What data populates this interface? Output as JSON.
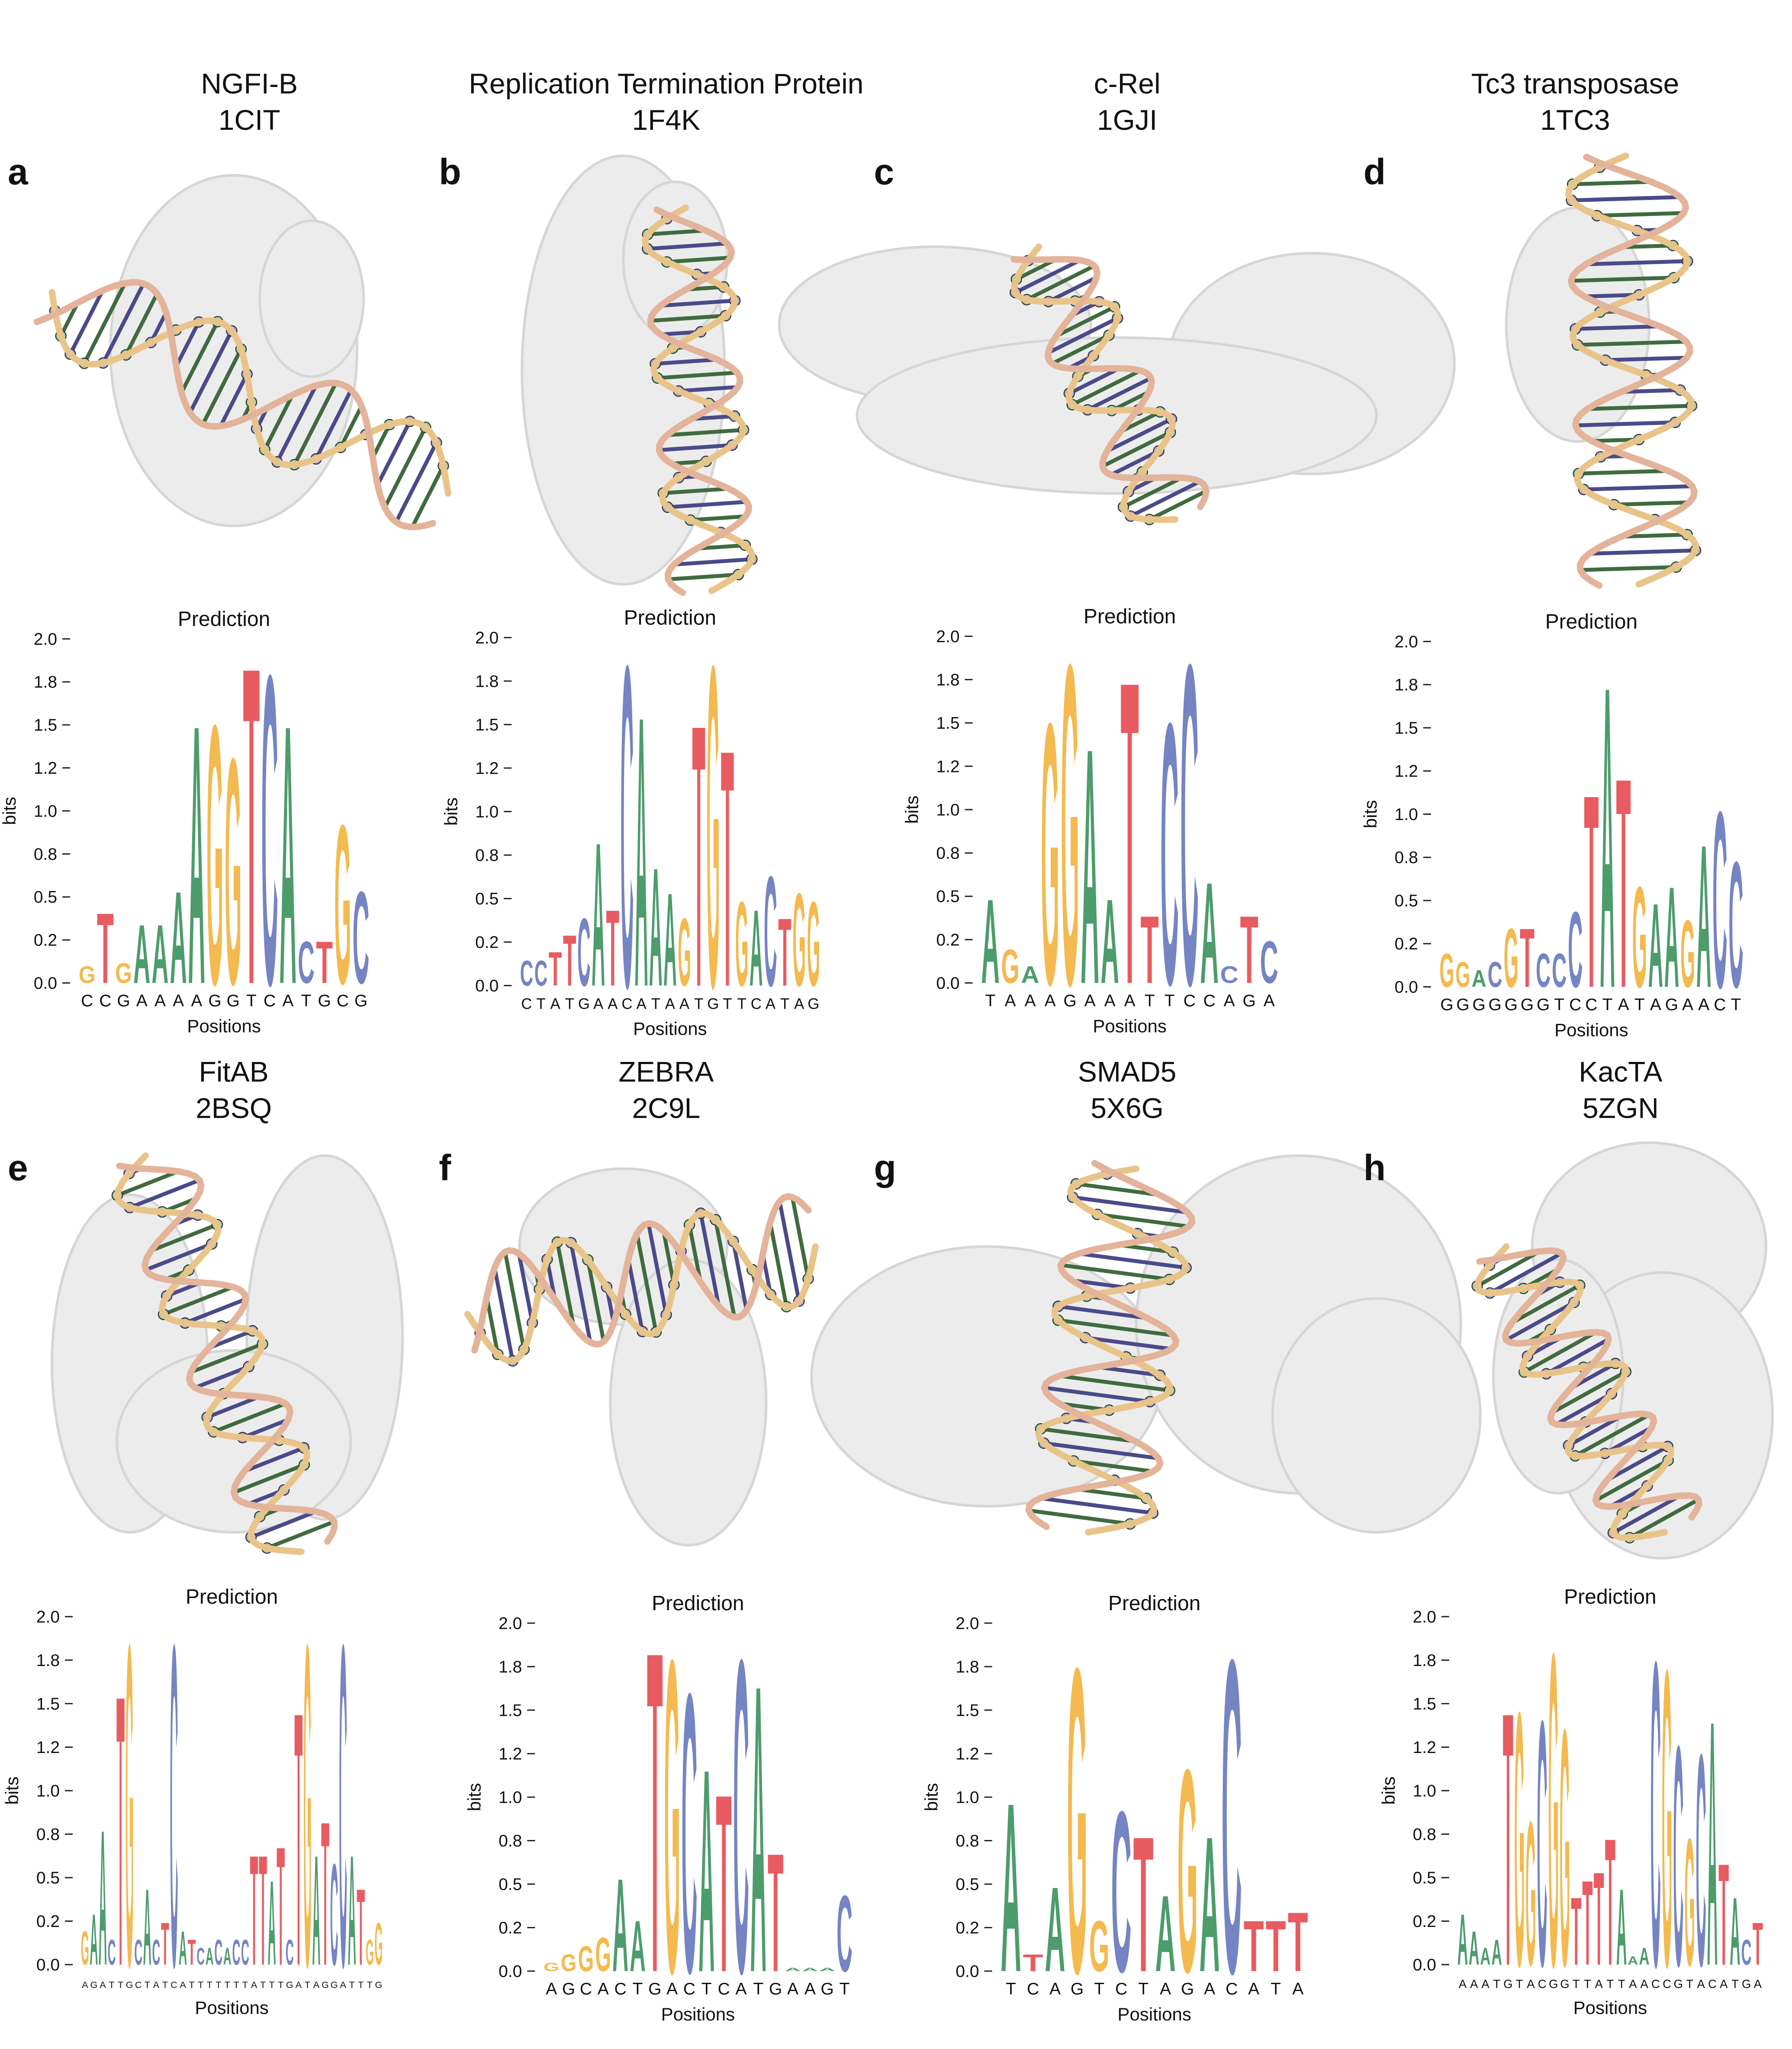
{
  "panels": [
    {
      "label": "a",
      "name": "NGFI-B",
      "pdb": "1CIT"
    },
    {
      "label": "b",
      "name": "Replication Termination Protein",
      "pdb": "1F4K"
    },
    {
      "label": "c",
      "name": "c-Rel",
      "pdb": "1GJI"
    },
    {
      "label": "d",
      "name": "Tc3 transposase",
      "pdb": "1TC3"
    },
    {
      "label": "e",
      "name": "FitAB",
      "pdb": "2BSQ"
    },
    {
      "label": "f",
      "name": "ZEBRA",
      "pdb": "2C9L"
    },
    {
      "label": "g",
      "name": "SMAD5",
      "pdb": "5X6G"
    },
    {
      "label": "h",
      "name": "KacTA",
      "pdb": "5ZGN"
    }
  ],
  "chart_data": [
    {
      "type": "logo",
      "title": "Prediction",
      "xlabel": "Positions",
      "ylabel": "bits",
      "colors": {
        "A": "#4d9c6c",
        "C": "#7584c2",
        "G": "#f4b94f",
        "T": "#e85b60"
      },
      "ylim": [
        0,
        2
      ],
      "yticks": [
        {
          "value": 0,
          "label": "0.0"
        },
        {
          "value": 0.25,
          "label": "0.2"
        },
        0.5,
        {
          "value": 0.75,
          "label": "0.8"
        },
        {
          "value": 1,
          "label": "1.0"
        },
        {
          "value": 1.25,
          "label": "1.2"
        },
        1.5,
        {
          "value": 1.75,
          "label": "1.8"
        },
        {
          "value": 2,
          "label": "2.0"
        }
      ],
      "categories": [
        "C",
        "C",
        "G",
        "A",
        "A",
        "A",
        "A",
        "G",
        "G",
        "T",
        "C",
        "A",
        "T",
        "G",
        "C",
        "G"
      ],
      "letters": [
        "G",
        "T",
        "G",
        "A",
        "A",
        "A",
        "A",
        "G",
        "G",
        "T",
        "C",
        "A",
        "C",
        "T",
        "G",
        "C"
      ],
      "values": [
        0.1,
        0.42,
        0.12,
        0.35,
        0.35,
        0.55,
        1.55,
        1.55,
        1.35,
        1.9,
        1.85,
        1.55,
        0.25,
        0.25,
        0.95,
        0.55
      ]
    },
    {
      "type": "logo",
      "title": "Prediction",
      "xlabel": "Positions",
      "ylabel": "bits",
      "colors": {
        "A": "#4d9c6c",
        "C": "#7584c2",
        "G": "#f4b94f",
        "T": "#e85b60"
      },
      "ylim": [
        0,
        2
      ],
      "yticks": [
        {
          "value": 0,
          "label": "0.0"
        },
        {
          "value": 0.25,
          "label": "0.2"
        },
        0.5,
        {
          "value": 0.75,
          "label": "0.8"
        },
        {
          "value": 1,
          "label": "1.0"
        },
        {
          "value": 1.25,
          "label": "1.2"
        },
        1.5,
        {
          "value": 1.75,
          "label": "1.8"
        },
        {
          "value": 2,
          "label": "2.0"
        }
      ],
      "categories": [
        "C",
        "T",
        "A",
        "T",
        "G",
        "A",
        "A",
        "C",
        "A",
        "T",
        "A",
        "A",
        "T",
        "G",
        "T",
        "T",
        "C",
        "A",
        "T",
        "A",
        "G"
      ],
      "letters": [
        "C",
        "C",
        "T",
        "T",
        "C",
        "A",
        "T",
        "C",
        "A",
        "A",
        "A",
        "G",
        "T",
        "G",
        "T",
        "G",
        "A",
        "C",
        "T",
        "G",
        "G"
      ],
      "values": [
        0.15,
        0.15,
        0.2,
        0.3,
        0.4,
        0.85,
        0.45,
        1.9,
        1.6,
        0.7,
        0.55,
        0.4,
        1.55,
        1.9,
        1.4,
        0.5,
        0.45,
        0.65,
        0.4,
        0.55,
        0.5
      ]
    },
    {
      "type": "logo",
      "title": "Prediction",
      "xlabel": "Positions",
      "ylabel": "bits",
      "colors": {
        "A": "#4d9c6c",
        "C": "#7584c2",
        "G": "#f4b94f",
        "T": "#e85b60"
      },
      "ylim": [
        0,
        2
      ],
      "yticks": [
        {
          "value": 0,
          "label": "0.0"
        },
        {
          "value": 0.25,
          "label": "0.2"
        },
        0.5,
        {
          "value": 0.75,
          "label": "0.8"
        },
        {
          "value": 1,
          "label": "1.0"
        },
        {
          "value": 1.25,
          "label": "1.2"
        },
        1.5,
        {
          "value": 1.75,
          "label": "1.8"
        },
        {
          "value": 2,
          "label": "2.0"
        }
      ],
      "categories": [
        "T",
        "A",
        "A",
        "A",
        "G",
        "A",
        "A",
        "A",
        "T",
        "T",
        "C",
        "C",
        "A",
        "G",
        "A"
      ],
      "letters": [
        "A",
        "G",
        "A",
        "G",
        "G",
        "A",
        "A",
        "T",
        "T",
        "C",
        "C",
        "A",
        "C",
        "T",
        "C"
      ],
      "values": [
        0.5,
        0.2,
        0.1,
        1.55,
        1.9,
        1.4,
        0.5,
        1.8,
        0.4,
        1.55,
        1.9,
        0.6,
        0.1,
        0.4,
        0.25
      ]
    },
    {
      "type": "logo",
      "title": "Prediction",
      "xlabel": "Positions",
      "ylabel": "bits",
      "colors": {
        "A": "#4d9c6c",
        "C": "#7584c2",
        "G": "#f4b94f",
        "T": "#e85b60"
      },
      "ylim": [
        0,
        2
      ],
      "yticks": [
        {
          "value": 0,
          "label": "0.0"
        },
        {
          "value": 0.25,
          "label": "0.2"
        },
        0.5,
        {
          "value": 0.75,
          "label": "0.8"
        },
        {
          "value": 1,
          "label": "1.0"
        },
        {
          "value": 1.25,
          "label": "1.2"
        },
        1.5,
        {
          "value": 1.75,
          "label": "1.8"
        },
        {
          "value": 2,
          "label": "2.0"
        }
      ],
      "categories": [
        "G",
        "G",
        "G",
        "G",
        "G",
        "G",
        "G",
        "T",
        "C",
        "C",
        "T",
        "A",
        "T",
        "A",
        "G",
        "A",
        "A",
        "C",
        "T"
      ],
      "letters": [
        "G",
        "G",
        "A",
        "C",
        "G",
        "T",
        "C",
        "C",
        "C",
        "T",
        "A",
        "T",
        "G",
        "A",
        "A",
        "G",
        "A",
        "C",
        "C"
      ],
      "values": [
        0.2,
        0.15,
        0.1,
        0.15,
        0.35,
        0.35,
        0.2,
        0.2,
        0.45,
        1.15,
        1.8,
        1.25,
        0.6,
        0.5,
        0.6,
        0.4,
        0.85,
        1.05,
        0.75
      ]
    },
    {
      "type": "logo",
      "title": "Prediction",
      "xlabel": "Positions",
      "ylabel": "bits",
      "colors": {
        "A": "#4d9c6c",
        "C": "#7584c2",
        "G": "#f4b94f",
        "T": "#e85b60"
      },
      "ylim": [
        0,
        2
      ],
      "yticks": [
        {
          "value": 0,
          "label": "0.0"
        },
        {
          "value": 0.25,
          "label": "0.2"
        },
        0.5,
        {
          "value": 0.75,
          "label": "0.8"
        },
        {
          "value": 1,
          "label": "1.0"
        },
        {
          "value": 1.25,
          "label": "1.2"
        },
        1.5,
        {
          "value": 1.75,
          "label": "1.8"
        },
        {
          "value": 2,
          "label": "2.0"
        }
      ],
      "categories": [
        "A",
        "G",
        "A",
        "T",
        "T",
        "G",
        "C",
        "T",
        "A",
        "T",
        "C",
        "A",
        "T",
        "T",
        "T",
        "T",
        "T",
        "T",
        "T",
        "A",
        "T",
        "T",
        "T",
        "G",
        "A",
        "T",
        "A",
        "G",
        "G",
        "A",
        "T",
        "T",
        "T",
        "G"
      ],
      "letters": [
        "G",
        "A",
        "A",
        "C",
        "T",
        "G",
        "C",
        "A",
        "C",
        "T",
        "C",
        "A",
        "T",
        "C",
        "A",
        "C",
        "A",
        "C",
        "C",
        "T",
        "T",
        "A",
        "T",
        "C",
        "T",
        "G",
        "A",
        "T",
        "C",
        "C",
        "A",
        "T",
        "G",
        "G"
      ],
      "values": [
        0.2,
        0.3,
        0.8,
        0.15,
        1.6,
        1.9,
        0.15,
        0.45,
        0.15,
        0.25,
        1.9,
        0.2,
        0.15,
        0.1,
        0.1,
        0.15,
        0.1,
        0.15,
        0.15,
        0.65,
        0.65,
        0.5,
        0.7,
        0.15,
        1.5,
        1.9,
        0.65,
        0.85,
        0.6,
        1.9,
        0.65,
        0.45,
        0.15,
        0.25
      ]
    },
    {
      "type": "logo",
      "title": "Prediction",
      "xlabel": "Positions",
      "ylabel": "bits",
      "colors": {
        "A": "#4d9c6c",
        "C": "#7584c2",
        "G": "#f4b94f",
        "T": "#e85b60"
      },
      "ylim": [
        0,
        2
      ],
      "yticks": [
        {
          "value": 0,
          "label": "0.0"
        },
        {
          "value": 0.25,
          "label": "0.2"
        },
        0.5,
        {
          "value": 0.75,
          "label": "0.8"
        },
        {
          "value": 1,
          "label": "1.0"
        },
        {
          "value": 1.25,
          "label": "1.2"
        },
        1.5,
        {
          "value": 1.75,
          "label": "1.8"
        },
        {
          "value": 2,
          "label": "2.0"
        }
      ],
      "categories": [
        "A",
        "G",
        "C",
        "A",
        "C",
        "T",
        "G",
        "A",
        "C",
        "T",
        "C",
        "A",
        "T",
        "G",
        "A",
        "A",
        "G",
        "T"
      ],
      "letters": [
        "G",
        "G",
        "G",
        "G",
        "A",
        "A",
        "T",
        "G",
        "C",
        "A",
        "T",
        "C",
        "A",
        "T",
        "A",
        "A",
        "A",
        "C"
      ],
      "values": [
        0.05,
        0.1,
        0.15,
        0.2,
        0.55,
        0.3,
        1.9,
        1.85,
        1.65,
        1.2,
        1.05,
        1.85,
        1.7,
        0.7,
        0.02,
        0.02,
        0.02,
        0.45
      ]
    },
    {
      "type": "logo",
      "title": "Prediction",
      "xlabel": "Positions",
      "ylabel": "bits",
      "colors": {
        "A": "#4d9c6c",
        "C": "#7584c2",
        "G": "#f4b94f",
        "T": "#e85b60"
      },
      "ylim": [
        0,
        2
      ],
      "yticks": [
        {
          "value": 0,
          "label": "0.0"
        },
        {
          "value": 0.25,
          "label": "0.2"
        },
        0.5,
        {
          "value": 0.75,
          "label": "0.8"
        },
        {
          "value": 1,
          "label": "1.0"
        },
        {
          "value": 1.25,
          "label": "1.2"
        },
        1.5,
        {
          "value": 1.75,
          "label": "1.8"
        },
        {
          "value": 2,
          "label": "2.0"
        }
      ],
      "categories": [
        "T",
        "C",
        "A",
        "G",
        "T",
        "C",
        "T",
        "A",
        "G",
        "A",
        "C",
        "A",
        "T",
        "A"
      ],
      "letters": [
        "A",
        "T",
        "A",
        "G",
        "G",
        "C",
        "T",
        "A",
        "G",
        "A",
        "C",
        "T",
        "T",
        "T"
      ],
      "values": [
        1.0,
        0.1,
        0.5,
        1.8,
        0.3,
        0.95,
        0.8,
        0.45,
        1.2,
        0.8,
        1.85,
        0.3,
        0.3,
        0.35
      ]
    },
    {
      "type": "logo",
      "title": "Prediction",
      "xlabel": "Positions",
      "ylabel": "bits",
      "colors": {
        "A": "#4d9c6c",
        "C": "#7584c2",
        "G": "#f4b94f",
        "T": "#e85b60"
      },
      "ylim": [
        0,
        2
      ],
      "yticks": [
        {
          "value": 0,
          "label": "0.0"
        },
        {
          "value": 0.25,
          "label": "0.2"
        },
        0.5,
        {
          "value": 0.75,
          "label": "0.8"
        },
        {
          "value": 1,
          "label": "1.0"
        },
        {
          "value": 1.25,
          "label": "1.2"
        },
        1.5,
        {
          "value": 1.75,
          "label": "1.8"
        },
        {
          "value": 2,
          "label": "2.0"
        }
      ],
      "categories": [
        "A",
        "A",
        "A",
        "T",
        "G",
        "T",
        "A",
        "C",
        "G",
        "G",
        "T",
        "T",
        "A",
        "T",
        "T",
        "A",
        "A",
        "C",
        "C",
        "G",
        "T",
        "A",
        "C",
        "A",
        "T",
        "G",
        "A"
      ],
      "letters": [
        "A",
        "A",
        "A",
        "A",
        "T",
        "G",
        "G",
        "C",
        "G",
        "G",
        "T",
        "T",
        "T",
        "T",
        "A",
        "A",
        "A",
        "C",
        "G",
        "C",
        "G",
        "C",
        "A",
        "T",
        "A",
        "C",
        "T"
      ],
      "values": [
        0.3,
        0.2,
        0.1,
        0.15,
        1.5,
        1.5,
        0.85,
        1.45,
        1.85,
        1.4,
        0.4,
        0.5,
        0.55,
        0.75,
        0.45,
        0.05,
        0.1,
        1.8,
        1.75,
        1.3,
        0.75,
        1.25,
        1.45,
        0.6,
        0.4,
        0.15,
        0.25
      ]
    }
  ]
}
